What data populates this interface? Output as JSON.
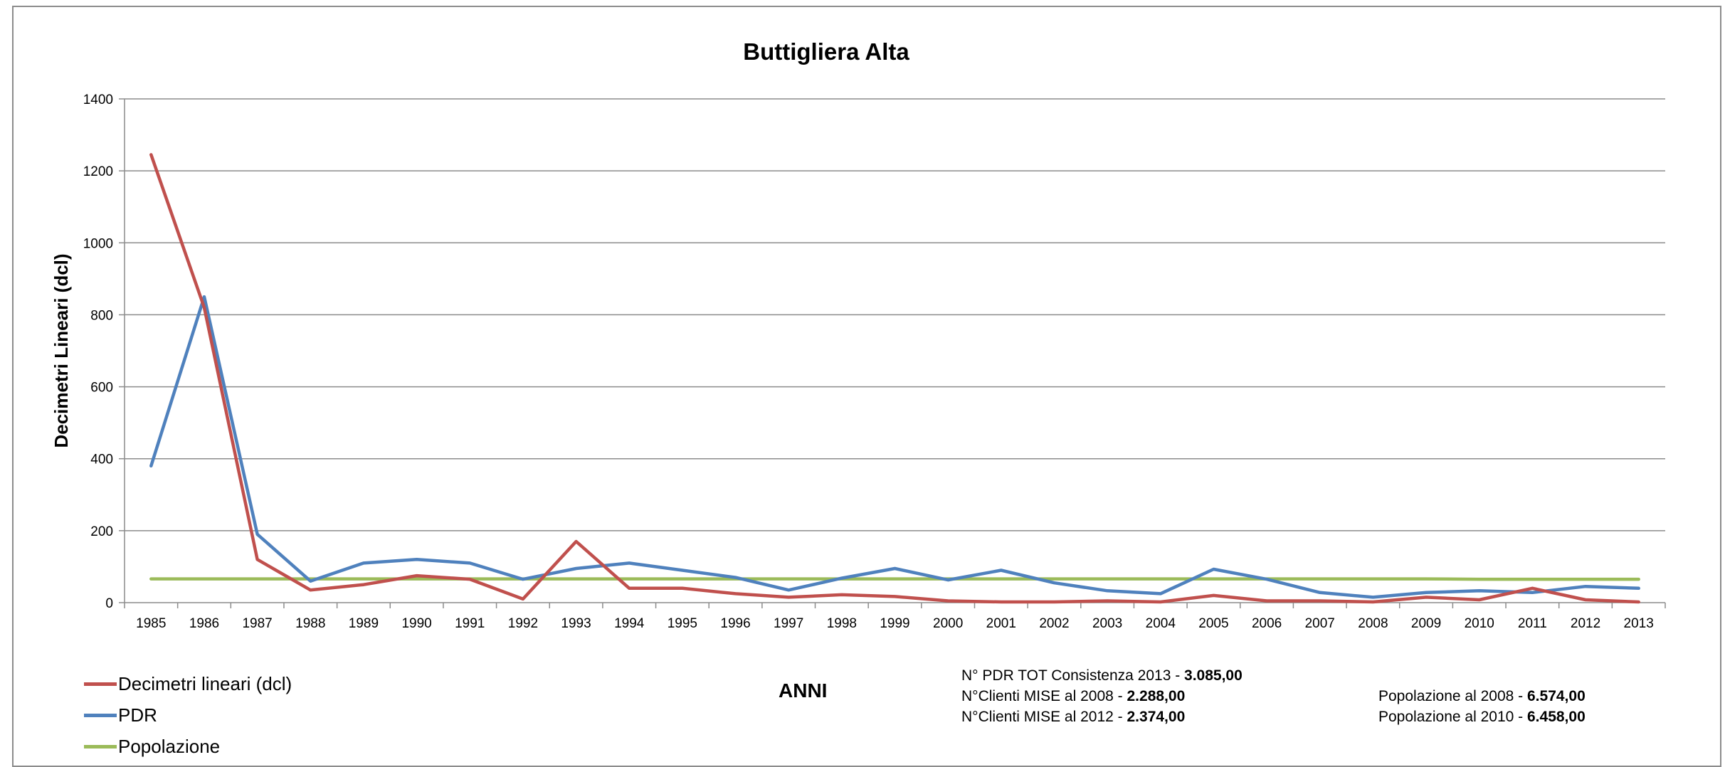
{
  "chart_data": {
    "type": "line",
    "title": "Buttigliera Alta",
    "xlabel": "ANNI",
    "ylabel": "Decimetri Lineari (dcl)",
    "ylim": [
      0,
      1400
    ],
    "yticks": [
      0,
      200,
      400,
      600,
      800,
      1000,
      1200,
      1400
    ],
    "grid": true,
    "legend_position": "bottom-left",
    "x": [
      "1985",
      "1986",
      "1987",
      "1988",
      "1989",
      "1990",
      "1991",
      "1992",
      "1993",
      "1994",
      "1995",
      "1996",
      "1997",
      "1998",
      "1999",
      "2000",
      "2001",
      "2002",
      "2003",
      "2004",
      "2005",
      "2006",
      "2007",
      "2008",
      "2009",
      "2010",
      "2011",
      "2012",
      "2013"
    ],
    "series": [
      {
        "name": "Decimetri lineari (dcl)",
        "color": "#c0504d",
        "values": [
          1245,
          820,
          120,
          35,
          50,
          75,
          65,
          10,
          170,
          40,
          40,
          25,
          15,
          22,
          17,
          5,
          2,
          2,
          5,
          2,
          20,
          5,
          5,
          2,
          15,
          8,
          40,
          8,
          2
        ]
      },
      {
        "name": "PDR",
        "color": "#4f81bd",
        "values": [
          380,
          850,
          190,
          60,
          110,
          120,
          110,
          65,
          95,
          110,
          90,
          70,
          35,
          68,
          95,
          63,
          90,
          55,
          33,
          25,
          93,
          65,
          28,
          15,
          28,
          33,
          28,
          45,
          40
        ]
      },
      {
        "name": "Popolazione",
        "color": "#9bbb59",
        "values": [
          66,
          66,
          66,
          66,
          66,
          66,
          66,
          66,
          66,
          66,
          66,
          66,
          66,
          66,
          66,
          66,
          66,
          66,
          66,
          66,
          66,
          66,
          66,
          66,
          66,
          65,
          65,
          65,
          65
        ]
      }
    ]
  },
  "info": {
    "pdr_label": "N° PDR TOT Consistenza 2013 - ",
    "pdr_value": "3.085,00",
    "mise2008_label": "N°Clienti MISE al 2008 - ",
    "mise2008_value": "2.288,00",
    "mise2012_label": "N°Clienti MISE al 2012 - ",
    "mise2012_value": "2.374,00",
    "pop2008_label": "Popolazione al 2008 - ",
    "pop2008_value": "6.574,00",
    "pop2010_label": "Popolazione al 2010 - ",
    "pop2010_value": "6.458,00"
  }
}
